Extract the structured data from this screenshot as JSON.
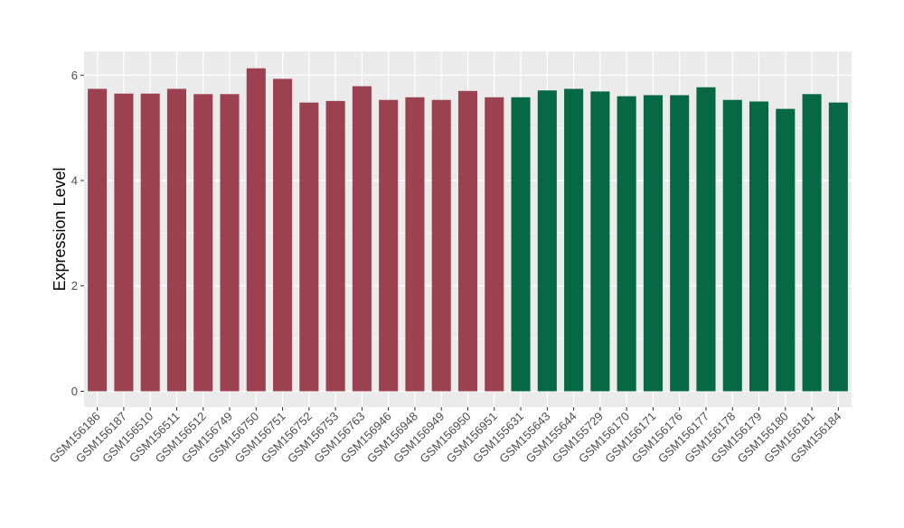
{
  "chart_data": {
    "type": "bar",
    "ylabel": "Expression Level",
    "ylim": [
      -0.3,
      6.45
    ],
    "yticks": [
      0,
      2,
      4,
      6
    ],
    "grid": true,
    "legend": "none",
    "background_color": "#ebebeb",
    "gridline_color": "#ffffff",
    "categories": [
      "GSM156186",
      "GSM156187",
      "GSM156510",
      "GSM156511",
      "GSM156512",
      "GSM156749",
      "GSM156750",
      "GSM156751",
      "GSM156752",
      "GSM156753",
      "GSM156763",
      "GSM156946",
      "GSM156948",
      "GSM156949",
      "GSM156950",
      "GSM156951",
      "GSM155631",
      "GSM155643",
      "GSM155644",
      "GSM155729",
      "GSM156170",
      "GSM156171",
      "GSM156176",
      "GSM156177",
      "GSM156178",
      "GSM156179",
      "GSM156180",
      "GSM156181",
      "GSM156184"
    ],
    "values": [
      5.74,
      5.65,
      5.65,
      5.74,
      5.64,
      5.64,
      6.13,
      5.93,
      5.48,
      5.51,
      5.79,
      5.53,
      5.58,
      5.53,
      5.7,
      5.58,
      5.58,
      5.71,
      5.74,
      5.69,
      5.6,
      5.62,
      5.62,
      5.77,
      5.53,
      5.5,
      5.36,
      5.64,
      5.48
    ],
    "bar_colors": [
      "#9b4150",
      "#9b4150",
      "#9b4150",
      "#9b4150",
      "#9b4150",
      "#9b4150",
      "#9b4150",
      "#9b4150",
      "#9b4150",
      "#9b4150",
      "#9b4150",
      "#9b4150",
      "#9b4150",
      "#9b4150",
      "#9b4150",
      "#9b4150",
      "#066845",
      "#066845",
      "#066845",
      "#066845",
      "#066845",
      "#066845",
      "#066845",
      "#066845",
      "#066845",
      "#066845",
      "#066845",
      "#066845",
      "#066845"
    ]
  }
}
